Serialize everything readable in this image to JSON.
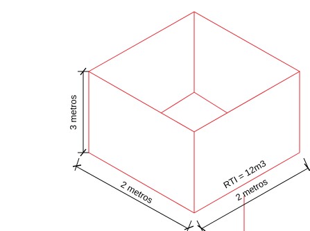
{
  "diagram": {
    "height_label": "3 metros",
    "width_left_label": "2 metros",
    "width_right_label": "2 metros",
    "volume_label": "RTI = 12m3",
    "edge_color": "#e8232b",
    "dimension_color": "#000000"
  }
}
